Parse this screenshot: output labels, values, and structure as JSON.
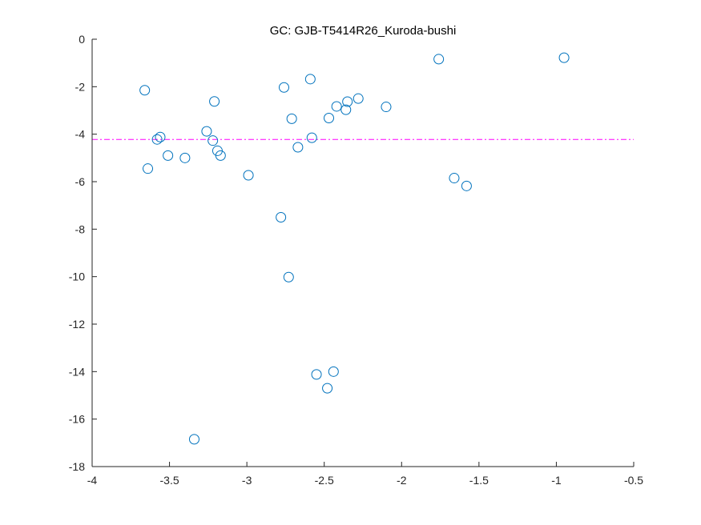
{
  "chart_data": {
    "type": "scatter",
    "title": "GC: GJB-T5414R26_Kuroda-bushi",
    "xlabel": "",
    "ylabel": "",
    "xlim": [
      -4,
      -0.5
    ],
    "ylim": [
      -18,
      0
    ],
    "xticks": [
      -4,
      -3.5,
      -3,
      -2.5,
      -2,
      -1.5,
      -1,
      -0.5
    ],
    "xtick_labels": [
      "-4",
      "-3.5",
      "-3",
      "-2.5",
      "-2",
      "-1.5",
      "-1",
      "-0.5"
    ],
    "yticks": [
      0,
      -2,
      -4,
      -6,
      -8,
      -10,
      -12,
      -14,
      -16,
      -18
    ],
    "ytick_labels": [
      "0",
      "-2",
      "-4",
      "-6",
      "-8",
      "-10",
      "-12",
      "-14",
      "-16",
      "-18"
    ],
    "grid": false,
    "marker": "open-circle",
    "marker_color": "#0072BD",
    "reference_line": {
      "y": -4.22,
      "style": "dash-dot",
      "color": "#FF00FF"
    },
    "points": [
      {
        "x": -3.66,
        "y": -2.15
      },
      {
        "x": -3.64,
        "y": -5.45
      },
      {
        "x": -3.58,
        "y": -4.22
      },
      {
        "x": -3.56,
        "y": -4.12
      },
      {
        "x": -3.51,
        "y": -4.9
      },
      {
        "x": -3.4,
        "y": -5.0
      },
      {
        "x": -3.34,
        "y": -16.85
      },
      {
        "x": -3.26,
        "y": -3.88
      },
      {
        "x": -3.22,
        "y": -4.27
      },
      {
        "x": -3.21,
        "y": -2.62
      },
      {
        "x": -3.19,
        "y": -4.7
      },
      {
        "x": -3.17,
        "y": -4.9
      },
      {
        "x": -2.99,
        "y": -5.73
      },
      {
        "x": -2.78,
        "y": -7.5
      },
      {
        "x": -2.76,
        "y": -2.03
      },
      {
        "x": -2.73,
        "y": -10.02
      },
      {
        "x": -2.71,
        "y": -3.35
      },
      {
        "x": -2.67,
        "y": -4.55
      },
      {
        "x": -2.59,
        "y": -1.68
      },
      {
        "x": -2.58,
        "y": -4.15
      },
      {
        "x": -2.55,
        "y": -14.12
      },
      {
        "x": -2.48,
        "y": -14.7
      },
      {
        "x": -2.47,
        "y": -3.32
      },
      {
        "x": -2.44,
        "y": -14.0
      },
      {
        "x": -2.42,
        "y": -2.83
      },
      {
        "x": -2.36,
        "y": -2.97
      },
      {
        "x": -2.35,
        "y": -2.63
      },
      {
        "x": -2.28,
        "y": -2.5
      },
      {
        "x": -2.1,
        "y": -2.85
      },
      {
        "x": -1.76,
        "y": -0.84
      },
      {
        "x": -1.66,
        "y": -5.85
      },
      {
        "x": -1.58,
        "y": -6.18
      },
      {
        "x": -0.95,
        "y": -0.78
      }
    ]
  }
}
